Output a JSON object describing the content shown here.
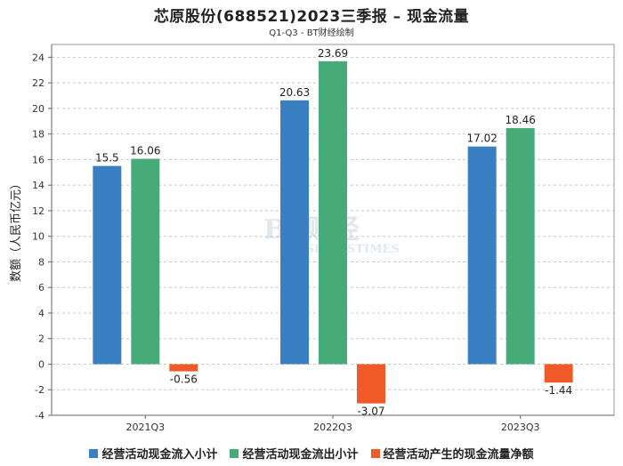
{
  "title": "芯原股份(688521)2023三季报 – 现金流量",
  "subtitle": "Q1-Q3 - BT财经绘制",
  "watermark": {
    "main": "BT财经",
    "sub": "BUSINESSTIMES"
  },
  "chart_data": {
    "type": "bar",
    "categories": [
      "2021Q3",
      "2022Q3",
      "2023Q3"
    ],
    "series": [
      {
        "name": "经营活动现金流入小计",
        "color": "#3a7fc1",
        "values": [
          15.5,
          20.63,
          17.02
        ]
      },
      {
        "name": "经营活动现金流出小计",
        "color": "#46ab78",
        "values": [
          16.06,
          23.69,
          18.46
        ]
      },
      {
        "name": "经营活动产生的现金流量净额",
        "color": "#f05a28",
        "values": [
          -0.56,
          -3.07,
          -1.44
        ]
      }
    ],
    "ylabel": "数额（人民币亿元）",
    "xlabel": "",
    "ylim": [
      -4,
      25
    ],
    "yticks": [
      -4,
      -2,
      0,
      2,
      4,
      6,
      8,
      10,
      12,
      14,
      16,
      18,
      20,
      22,
      24
    ],
    "grid": true,
    "legend_position": "bottom"
  }
}
